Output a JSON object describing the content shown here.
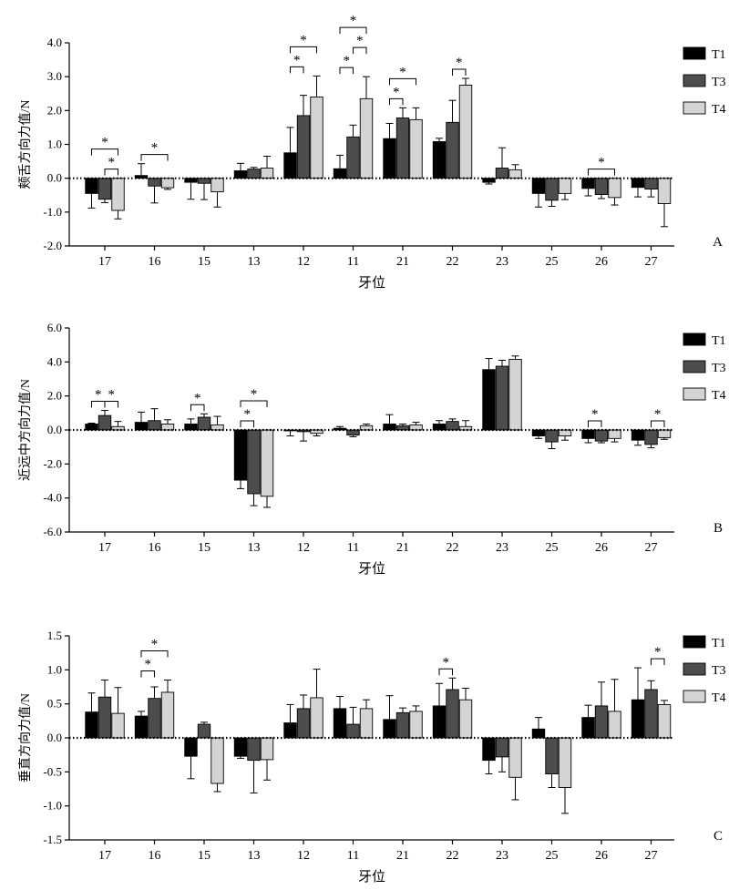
{
  "legend": {
    "series": [
      {
        "name": "T1",
        "color": "#000000"
      },
      {
        "name": "T3",
        "color": "#4d4d4d"
      },
      {
        "name": "T4",
        "color": "#d4d4d4"
      }
    ]
  },
  "chart_data": [
    {
      "type": "bar",
      "panel_letter": "A",
      "ylabel": "颊舌方向力值/N",
      "xlabel": "牙位",
      "ylim": [
        -2.0,
        4.0
      ],
      "yticks": [
        -2.0,
        -1.0,
        0.0,
        1.0,
        2.0,
        3.0,
        4.0
      ],
      "ytick_labels": [
        "-2.0",
        "-1.0",
        "0.0",
        "1.0",
        "2.0",
        "3.0",
        "4.0"
      ],
      "categories": [
        "17",
        "16",
        "15",
        "13",
        "12",
        "11",
        "21",
        "22",
        "23",
        "25",
        "26",
        "27"
      ],
      "series": [
        {
          "name": "T1",
          "values": [
            -0.45,
            0.08,
            -0.12,
            0.22,
            0.75,
            0.28,
            1.17,
            1.08,
            -0.12,
            -0.45,
            -0.3,
            -0.27
          ],
          "errors": [
            0.43,
            0.35,
            0.5,
            0.22,
            0.75,
            0.4,
            0.45,
            0.1,
            0.05,
            0.4,
            0.22,
            0.28
          ]
        },
        {
          "name": "T3",
          "values": [
            -0.62,
            -0.23,
            -0.15,
            0.27,
            1.85,
            1.22,
            1.78,
            1.65,
            0.3,
            -0.65,
            -0.48,
            -0.32
          ],
          "errors": [
            0.1,
            0.5,
            0.48,
            0.05,
            0.6,
            0.35,
            0.3,
            0.65,
            0.6,
            0.18,
            0.12,
            0.23
          ]
        },
        {
          "name": "T4",
          "values": [
            -0.95,
            -0.28,
            -0.4,
            0.3,
            2.4,
            2.35,
            1.73,
            2.75,
            0.25,
            -0.45,
            -0.57,
            -0.75
          ],
          "errors": [
            0.25,
            0.05,
            0.45,
            0.35,
            0.62,
            0.65,
            0.35,
            0.2,
            0.15,
            0.18,
            0.22,
            0.68
          ]
        }
      ],
      "significance": [
        {
          "category": "17",
          "from": 1,
          "to": 2,
          "level": 1
        },
        {
          "category": "17",
          "from": 0,
          "to": 2,
          "level": 2
        },
        {
          "category": "16",
          "from": 0,
          "to": 2,
          "level": 1
        },
        {
          "category": "12",
          "from": 0,
          "to": 1,
          "level": 1
        },
        {
          "category": "12",
          "from": 0,
          "to": 2,
          "level": 2
        },
        {
          "category": "11",
          "from": 0,
          "to": 1,
          "level": 1
        },
        {
          "category": "11",
          "from": 1,
          "to": 2,
          "level": 2
        },
        {
          "category": "11",
          "from": 0,
          "to": 2,
          "level": 3
        },
        {
          "category": "21",
          "from": 0,
          "to": 1,
          "level": 1
        },
        {
          "category": "21",
          "from": 0,
          "to": 2,
          "level": 2
        },
        {
          "category": "22",
          "from": 1,
          "to": 2,
          "level": 1
        },
        {
          "category": "26",
          "from": 0,
          "to": 2,
          "level": 1
        }
      ],
      "sig_label": "*"
    },
    {
      "type": "bar",
      "panel_letter": "B",
      "ylabel": "近远中方向力值/N",
      "xlabel": "牙位",
      "ylim": [
        -6.0,
        6.0
      ],
      "yticks": [
        -6.0,
        -4.0,
        -2.0,
        0.0,
        2.0,
        4.0,
        6.0
      ],
      "ytick_labels": [
        "-6.0",
        "-4.0",
        "-2.0",
        "0.0",
        "2.0",
        "4.0",
        "6.0"
      ],
      "categories": [
        "17",
        "16",
        "15",
        "13",
        "12",
        "11",
        "21",
        "22",
        "23",
        "25",
        "26",
        "27"
      ],
      "series": [
        {
          "name": "T1",
          "values": [
            0.35,
            0.45,
            0.35,
            -2.95,
            -0.05,
            0.1,
            0.35,
            0.35,
            3.55,
            -0.35,
            -0.5,
            -0.6
          ],
          "errors": [
            0.05,
            0.6,
            0.3,
            0.5,
            0.3,
            0.1,
            0.55,
            0.2,
            0.65,
            0.15,
            0.25,
            0.3
          ]
        },
        {
          "name": "T3",
          "values": [
            0.85,
            0.55,
            0.75,
            -3.75,
            -0.1,
            -0.3,
            0.25,
            0.5,
            3.75,
            -0.7,
            -0.65,
            -0.85
          ],
          "errors": [
            0.3,
            0.7,
            0.2,
            0.7,
            0.55,
            0.1,
            0.1,
            0.15,
            0.35,
            0.4,
            0.1,
            0.2
          ]
        },
        {
          "name": "T4",
          "values": [
            0.2,
            0.35,
            0.3,
            -3.9,
            -0.2,
            0.25,
            0.3,
            0.2,
            4.15,
            -0.35,
            -0.5,
            -0.45
          ],
          "errors": [
            0.3,
            0.25,
            0.5,
            0.65,
            0.15,
            0.1,
            0.15,
            0.35,
            0.2,
            0.25,
            0.2,
            0.1
          ]
        }
      ],
      "significance": [
        {
          "category": "17",
          "from": 0,
          "to": 1,
          "level": 1
        },
        {
          "category": "17",
          "from": 1,
          "to": 2,
          "level": 1
        },
        {
          "category": "15",
          "from": 0,
          "to": 1,
          "level": 1
        },
        {
          "category": "13",
          "from": 0,
          "to": 1,
          "level": 1
        },
        {
          "category": "13",
          "from": 0,
          "to": 2,
          "level": 2
        },
        {
          "category": "26",
          "from": 0,
          "to": 1,
          "level": 1
        },
        {
          "category": "27",
          "from": 1,
          "to": 2,
          "level": 1
        }
      ],
      "sig_label": "*"
    },
    {
      "type": "bar",
      "panel_letter": "C",
      "ylabel": "垂直方向力值/N",
      "xlabel": "牙位",
      "ylim": [
        -1.5,
        1.5
      ],
      "yticks": [
        -1.5,
        -1.0,
        -0.5,
        0.0,
        0.5,
        1.0,
        1.5
      ],
      "ytick_labels": [
        "-1.5",
        "-1.0",
        "-0.5",
        "0.0",
        "0.5",
        "1.0",
        "1.5"
      ],
      "categories": [
        "17",
        "16",
        "15",
        "13",
        "12",
        "11",
        "21",
        "22",
        "23",
        "25",
        "26",
        "27"
      ],
      "series": [
        {
          "name": "T1",
          "values": [
            0.38,
            0.32,
            -0.27,
            -0.27,
            0.22,
            0.43,
            0.27,
            0.47,
            -0.33,
            0.13,
            0.3,
            0.56
          ],
          "errors": [
            0.28,
            0.07,
            0.33,
            0.03,
            0.27,
            0.18,
            0.35,
            0.33,
            0.2,
            0.17,
            0.18,
            0.47
          ]
        },
        {
          "name": "T3",
          "values": [
            0.6,
            0.58,
            0.2,
            -0.33,
            0.43,
            0.2,
            0.37,
            0.71,
            -0.28,
            -0.53,
            0.47,
            0.71
          ],
          "errors": [
            0.25,
            0.17,
            0.03,
            0.48,
            0.2,
            0.25,
            0.07,
            0.17,
            0.22,
            0.2,
            0.35,
            0.13
          ]
        },
        {
          "name": "T4",
          "values": [
            0.36,
            0.67,
            -0.67,
            -0.32,
            0.59,
            0.43,
            0.39,
            0.56,
            -0.58,
            -0.73,
            0.39,
            0.49
          ],
          "errors": [
            0.38,
            0.18,
            0.12,
            0.3,
            0.42,
            0.13,
            0.08,
            0.17,
            0.33,
            0.38,
            0.47,
            0.06
          ]
        }
      ],
      "significance": [
        {
          "category": "16",
          "from": 0,
          "to": 1,
          "level": 1
        },
        {
          "category": "16",
          "from": 0,
          "to": 2,
          "level": 2
        },
        {
          "category": "22",
          "from": 0,
          "to": 1,
          "level": 1
        },
        {
          "category": "27",
          "from": 1,
          "to": 2,
          "level": 1
        }
      ],
      "sig_label": "*"
    }
  ]
}
